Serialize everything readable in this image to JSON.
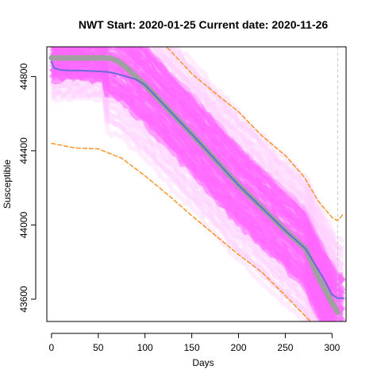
{
  "chart_data": {
    "type": "line",
    "title": "NWT Start:  2020-01-25   Current date:  2020-11-26",
    "xlabel": "Days",
    "ylabel": "Susceptible",
    "xlim": [
      -5,
      315
    ],
    "ylim": [
      43480,
      44960
    ],
    "x_ticks": [
      0,
      50,
      100,
      150,
      200,
      250,
      300
    ],
    "y_ticks": [
      43600,
      44000,
      44400,
      44800
    ],
    "y_tick_labels": [
      "43600",
      "44000",
      "44400",
      "44800"
    ],
    "current_day_marker": 306,
    "colors": {
      "band": "#ff66ff",
      "band_faint": "#ffc8ff",
      "grey_line": "#a0a0a0",
      "blue_line": "#6a6ad8",
      "orange": "#ff8c1a",
      "marker": "#c8c8c8"
    },
    "series": [
      {
        "style": "grey-thick",
        "x": [
          0,
          60,
          65,
          72,
          78,
          85,
          90,
          100,
          150,
          200,
          250,
          272,
          285,
          300,
          306
        ],
        "y": [
          44900,
          44900,
          44895,
          44880,
          44855,
          44825,
          44800,
          44755,
          44490,
          44215,
          43970,
          43870,
          43720,
          43580,
          43530
        ]
      },
      {
        "style": "blue",
        "x": [
          0,
          3,
          10,
          20,
          30,
          40,
          50,
          60,
          70,
          80,
          90,
          100,
          150,
          200,
          250,
          272,
          290,
          300,
          306,
          312
        ],
        "y": [
          44880,
          44845,
          44835,
          44832,
          44832,
          44830,
          44828,
          44825,
          44815,
          44800,
          44785,
          44755,
          44490,
          44215,
          43970,
          43870,
          43720,
          43625,
          43605,
          43605
        ]
      },
      {
        "style": "orange-upper",
        "x": [
          70,
          100,
          125,
          150,
          175,
          200,
          225,
          250,
          270,
          285,
          300,
          305,
          308,
          312
        ],
        "y": [
          45100,
          45030,
          44950,
          44815,
          44710,
          44610,
          44480,
          44375,
          44260,
          44130,
          44040,
          44025,
          44035,
          44060
        ]
      },
      {
        "style": "orange-lower",
        "x": [
          0,
          25,
          50,
          75,
          100,
          125,
          150,
          175,
          200,
          225,
          250,
          275,
          300
        ],
        "y": [
          44440,
          44415,
          44410,
          44360,
          44265,
          44160,
          44050,
          43945,
          43840,
          43745,
          43620,
          43490,
          43370
        ]
      }
    ]
  }
}
